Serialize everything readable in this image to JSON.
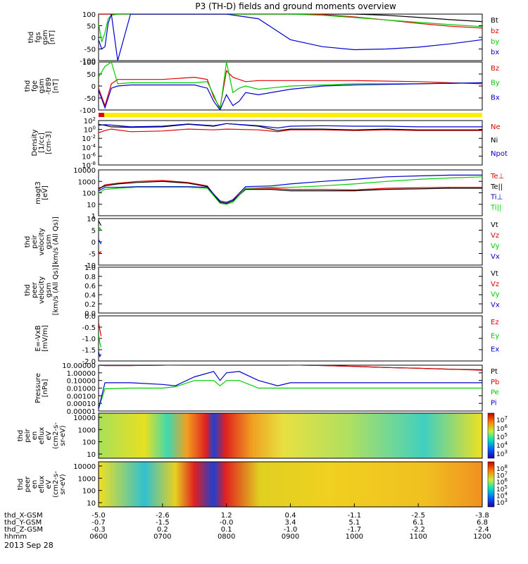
{
  "title": "P3 (TH-D) fields and ground moments overview",
  "date_label": "2013 Sep 28",
  "colors": {
    "black": "#000000",
    "red": "#e00000",
    "green": "#00cc00",
    "blue": "#0000d0",
    "yellow": "#ffee00"
  },
  "time_axis": {
    "ticks": [
      "0600",
      "0700",
      "0800",
      "0900",
      "1000",
      "1100",
      "1200"
    ],
    "rows": [
      {
        "label": "thd_X-GSM",
        "values": [
          "-5.0",
          "-2.6",
          "1.2",
          "0.4",
          "-1.1",
          "-2.5",
          "-3.8"
        ]
      },
      {
        "label": "thd_Y-GSM",
        "values": [
          "-0.7",
          "-1.5",
          "-0.0",
          "3.4",
          "5.1",
          "6.1",
          "6.8"
        ]
      },
      {
        "label": "thd_Z-GSM",
        "values": [
          "-0.3",
          "0.2",
          "0.1",
          "-1.0",
          "-1.7",
          "-2.2",
          "-2.4"
        ]
      },
      {
        "label": "hhmm",
        "values": []
      }
    ]
  },
  "chart_data": [
    {
      "id": "fgs",
      "type": "line",
      "ylabel_lines": [
        "thd",
        "fgs",
        "gsm",
        "[nT]"
      ],
      "yticks": [
        "100",
        "50",
        "0",
        "-50",
        "-100"
      ],
      "ylim": [
        -100,
        100
      ],
      "legend": [
        {
          "name": "Bt",
          "color": "black"
        },
        {
          "name": "bz",
          "color": "red"
        },
        {
          "name": "by",
          "color": "green"
        },
        {
          "name": "bx",
          "color": "blue"
        }
      ],
      "x": [
        6.0,
        6.05,
        6.1,
        6.15,
        6.2,
        6.3,
        6.5,
        7.0,
        7.5,
        8.0,
        8.5,
        9.0,
        9.5,
        10.0,
        10.5,
        11.0,
        11.5,
        12.0
      ],
      "series": [
        {
          "name": "Bt",
          "values": [
            100,
            100,
            100,
            100,
            100,
            100,
            100,
            100,
            100,
            100,
            100,
            100,
            100,
            100,
            95,
            86,
            76,
            68
          ]
        },
        {
          "name": "bz",
          "values": [
            100,
            100,
            100,
            100,
            100,
            100,
            100,
            100,
            100,
            100,
            100,
            100,
            98,
            88,
            75,
            60,
            48,
            40
          ]
        },
        {
          "name": "by",
          "values": [
            60,
            -20,
            20,
            80,
            95,
            100,
            100,
            100,
            100,
            100,
            100,
            100,
            95,
            85,
            75,
            65,
            55,
            46
          ]
        },
        {
          "name": "bx",
          "values": [
            -10,
            -50,
            -40,
            60,
            100,
            -100,
            100,
            100,
            100,
            100,
            80,
            -10,
            -40,
            -53,
            -50,
            -42,
            -28,
            -10
          ]
        }
      ]
    },
    {
      "id": "fge",
      "type": "line",
      "ylabel_lines": [
        "thd",
        "fge",
        "gsm",
        "-tr89",
        "[nT]"
      ],
      "yticks": [
        "100",
        "50",
        "0",
        "-50",
        "-100"
      ],
      "ylim": [
        -120,
        100
      ],
      "legend": [
        {
          "name": "Bz",
          "color": "red"
        },
        {
          "name": "By",
          "color": "green"
        },
        {
          "name": "Bx",
          "color": "blue"
        }
      ],
      "x": [
        6.0,
        6.1,
        6.2,
        6.3,
        6.5,
        7.0,
        7.5,
        7.7,
        7.8,
        7.9,
        8.0,
        8.1,
        8.2,
        8.3,
        8.5,
        9.0,
        9.5,
        10.0,
        11.0,
        12.0
      ],
      "series": [
        {
          "name": "Bz",
          "values": [
            -20,
            -100,
            0,
            20,
            20,
            20,
            30,
            20,
            -60,
            -110,
            60,
            30,
            20,
            10,
            15,
            15,
            15,
            15,
            10,
            0
          ]
        },
        {
          "name": "By",
          "values": [
            30,
            80,
            100,
            0,
            5,
            5,
            5,
            10,
            -50,
            -120,
            100,
            -40,
            -20,
            -10,
            -25,
            -10,
            -5,
            0,
            0,
            5
          ]
        },
        {
          "name": "Bx",
          "values": [
            -30,
            -110,
            -20,
            -10,
            -5,
            -5,
            -5,
            -20,
            -80,
            -120,
            -50,
            -100,
            -80,
            -40,
            -50,
            -25,
            -10,
            -5,
            0,
            5
          ]
        }
      ]
    },
    {
      "id": "density",
      "type": "line",
      "scale": "log",
      "ylabel_lines": [
        "Density",
        "[1/cc]",
        "[cm-3]"
      ],
      "yticks": [
        "10^2",
        "10^0",
        "10^-2",
        "10^-4",
        "10^-6",
        "10^-8"
      ],
      "ylim": [
        1e-09,
        1000
      ],
      "legend": [
        {
          "name": "Ne",
          "color": "red"
        },
        {
          "name": "Ni",
          "color": "black"
        },
        {
          "name": "Npot",
          "color": "blue"
        }
      ],
      "x": [
        6.0,
        6.1,
        6.2,
        6.5,
        7.0,
        7.4,
        7.8,
        8.0,
        8.5,
        8.8,
        9.0,
        9.5,
        10.0,
        10.5,
        11.0,
        11.5,
        12.0
      ],
      "series": [
        {
          "name": "Ne",
          "values": [
            0.5,
            2,
            5,
            1,
            1.5,
            5,
            3,
            5,
            3,
            1,
            3,
            3,
            2,
            3,
            2,
            2,
            2
          ]
        },
        {
          "name": "Ni",
          "values": [
            100,
            50,
            20,
            15,
            20,
            100,
            30,
            150,
            30,
            2,
            5,
            5,
            3,
            5,
            3,
            3,
            3
          ]
        },
        {
          "name": "Npot",
          "values": [
            50,
            80,
            60,
            20,
            30,
            120,
            40,
            150,
            40,
            10,
            30,
            40,
            30,
            30,
            20,
            20,
            20
          ]
        }
      ]
    },
    {
      "id": "temp",
      "type": "line",
      "scale": "log",
      "ylabel_lines": [
        "magt3",
        "[eV]"
      ],
      "yticks": [
        "10000",
        "1000",
        "100",
        "10",
        "1"
      ],
      "ylim": [
        1,
        10000
      ],
      "legend": [
        {
          "name": "Te⊥",
          "color": "red"
        },
        {
          "name": "Te||",
          "color": "black"
        },
        {
          "name": "Ti⊥",
          "color": "blue"
        },
        {
          "name": "Ti||",
          "color": "green"
        }
      ],
      "x": [
        6.0,
        6.1,
        6.3,
        6.6,
        7.0,
        7.4,
        7.7,
        7.9,
        8.0,
        8.1,
        8.3,
        8.7,
        9.0,
        9.5,
        10.0,
        10.5,
        11.0,
        11.5,
        12.0
      ],
      "series": [
        {
          "name": "Te⊥",
          "values": [
            200,
            500,
            700,
            1000,
            1200,
            800,
            400,
            15,
            12,
            20,
            250,
            250,
            200,
            200,
            180,
            250,
            280,
            300,
            300
          ]
        },
        {
          "name": "Te||",
          "values": [
            250,
            400,
            600,
            800,
            1000,
            700,
            350,
            15,
            12,
            20,
            200,
            200,
            150,
            150,
            150,
            200,
            220,
            250,
            250
          ]
        },
        {
          "name": "Ti⊥",
          "values": [
            150,
            300,
            300,
            350,
            350,
            350,
            300,
            20,
            15,
            25,
            350,
            400,
            600,
            1000,
            1500,
            2500,
            3000,
            3500,
            3500
          ]
        },
        {
          "name": "Ti||",
          "values": [
            100,
            200,
            250,
            300,
            300,
            300,
            250,
            12,
            10,
            15,
            250,
            300,
            300,
            400,
            600,
            1000,
            1500,
            2000,
            2500
          ]
        }
      ]
    },
    {
      "id": "peir_vel",
      "type": "line",
      "ylabel_lines": [
        "thd",
        "peir",
        "velocity",
        "gsm",
        "[km/s (All Qs)]"
      ],
      "yticks": [
        "10",
        "5",
        "0",
        "-5",
        "-10"
      ],
      "ylim": [
        -10,
        10
      ],
      "legend": [
        {
          "name": "Vt",
          "color": "black"
        },
        {
          "name": "Vz",
          "color": "red"
        },
        {
          "name": "Vy",
          "color": "green"
        },
        {
          "name": "Vx",
          "color": "blue"
        }
      ],
      "x": [
        6.0,
        6.02,
        6.04
      ],
      "series": [
        {
          "name": "Vt",
          "values": [
            9,
            8,
            7
          ]
        },
        {
          "name": "Vz",
          "values": [
            -4,
            -5,
            -4
          ]
        },
        {
          "name": "Vy",
          "values": [
            5,
            6,
            5
          ]
        },
        {
          "name": "Vx",
          "values": [
            1,
            0,
            -1
          ]
        }
      ]
    },
    {
      "id": "peer_vel",
      "type": "line",
      "ylabel_lines": [
        "thd",
        "peer",
        "velocity",
        "gsm",
        "[km/s (All Qs)]"
      ],
      "yticks": [
        "1.0",
        "0.8",
        "0.6",
        "0.4",
        "0.2",
        "0.0"
      ],
      "ylim": [
        0,
        1
      ],
      "legend": [
        {
          "name": "Vt",
          "color": "black"
        },
        {
          "name": "Vz",
          "color": "red"
        },
        {
          "name": "Vy",
          "color": "green"
        },
        {
          "name": "Vx",
          "color": "blue"
        }
      ],
      "x": [],
      "series": []
    },
    {
      "id": "efield",
      "type": "line",
      "ylabel_lines": [
        "E=-VxB",
        "[mV/m]"
      ],
      "yticks": [
        "0.0",
        "-0.5",
        "-1.0",
        "-1.5",
        "-2.0"
      ],
      "ylim": [
        -2,
        0
      ],
      "legend": [
        {
          "name": "Ez",
          "color": "red"
        },
        {
          "name": "Ey",
          "color": "green"
        },
        {
          "name": "Ex",
          "color": "blue"
        }
      ],
      "x": [
        6.0,
        6.02,
        6.04
      ],
      "series": [
        {
          "name": "Ez",
          "values": [
            -0.3,
            -0.6,
            -0.9
          ]
        },
        {
          "name": "Ey",
          "values": [
            -0.8,
            -1.2,
            -1.4
          ]
        },
        {
          "name": "Ex",
          "values": [
            -1.6,
            -1.8,
            -1.7
          ]
        }
      ]
    },
    {
      "id": "pressure",
      "type": "line",
      "scale": "log",
      "ylabel_lines": [
        "Pressure",
        "[nPa]"
      ],
      "yticks": [
        "10.00000",
        "1.00000",
        "0.10000",
        "0.01000",
        "0.00100",
        "0.00010",
        "0.00001"
      ],
      "ylim": [
        1e-05,
        10
      ],
      "legend": [
        {
          "name": "Pt",
          "color": "black"
        },
        {
          "name": "Pb",
          "color": "red"
        },
        {
          "name": "Pe",
          "color": "green"
        },
        {
          "name": "Pi",
          "color": "blue"
        }
      ],
      "x": [
        6.0,
        6.1,
        6.5,
        7.0,
        7.2,
        7.5,
        7.8,
        7.9,
        8.0,
        8.2,
        8.5,
        8.8,
        9.0,
        9.5,
        10.0,
        10.5,
        11.0,
        11.5,
        12.0
      ],
      "series": [
        {
          "name": "Pt",
          "values": [
            10,
            9,
            9,
            10,
            11,
            12,
            13,
            13,
            14,
            14,
            13,
            12,
            11,
            9,
            7,
            5,
            4,
            3,
            2.5
          ]
        },
        {
          "name": "Pb",
          "values": [
            10,
            9,
            9,
            10,
            11,
            12,
            13,
            13,
            14,
            14,
            13,
            12,
            11,
            9,
            7,
            5,
            4,
            3,
            2.2
          ]
        },
        {
          "name": "Pe",
          "values": [
            2e-05,
            0.008,
            0.01,
            0.01,
            0.015,
            0.1,
            0.1,
            0.02,
            0.1,
            0.1,
            0.01,
            0.01,
            0.01,
            0.01,
            0.01,
            0.01,
            0.01,
            0.01,
            0.01
          ]
        },
        {
          "name": "Pi",
          "values": [
            2e-05,
            0.05,
            0.05,
            0.03,
            0.02,
            0.3,
            1.5,
            0.1,
            1.0,
            1.5,
            0.1,
            0.02,
            0.05,
            0.05,
            0.05,
            0.05,
            0.05,
            0.05,
            0.05
          ]
        }
      ]
    },
    {
      "id": "peir_spec",
      "type": "heatmap",
      "ylabel_lines": [
        "thd",
        "peir",
        "en",
        "eflux",
        "eV",
        "(cm2-s-",
        "sr-eV)"
      ],
      "yticks": [
        "10000",
        "1000",
        "100",
        "10"
      ],
      "colorbar_ticks": [
        "10^7",
        "10^6",
        "10^5",
        "10^4",
        "10^3"
      ]
    },
    {
      "id": "peer_spec",
      "type": "heatmap",
      "ylabel_lines": [
        "thd",
        "peer",
        "en",
        "eflux",
        "eV",
        "(cm2-s-",
        "sr-eV)"
      ],
      "yticks": [
        "10000",
        "1000",
        "100",
        "10"
      ],
      "colorbar_ticks": [
        "10^8",
        "10^7",
        "10^6",
        "10^5",
        "10^4",
        "10^3"
      ]
    }
  ]
}
